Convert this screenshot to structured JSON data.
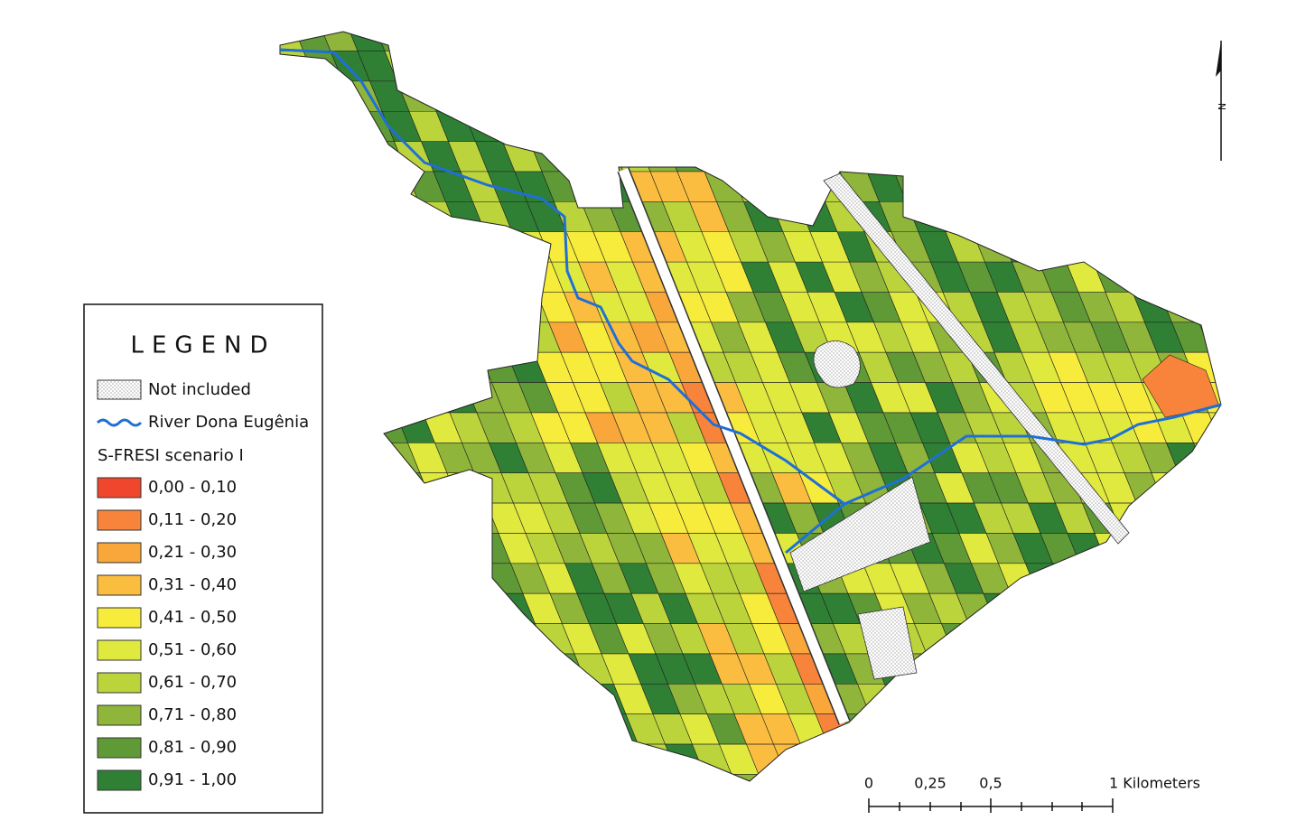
{
  "legend": {
    "title": "LEGEND",
    "items": [
      {
        "label": "Not included"
      },
      {
        "label": "River Dona Eugênia"
      }
    ],
    "subtitle": "S-FRESI scenario I",
    "classes": [
      {
        "label": "0,00 - 0,10",
        "color": "#f0462d"
      },
      {
        "label": "0,11 - 0,20",
        "color": "#f7843a"
      },
      {
        "label": "0,21 - 0,30",
        "color": "#f9a63a"
      },
      {
        "label": "0,31 - 0,40",
        "color": "#fbbd3f"
      },
      {
        "label": "0,41 - 0,50",
        "color": "#f7ec3c"
      },
      {
        "label": "0,51 - 0,60",
        "color": "#e0ea3e"
      },
      {
        "label": "0,61 - 0,70",
        "color": "#bcd43c"
      },
      {
        "label": "0,71 - 0,80",
        "color": "#8fb53a"
      },
      {
        "label": "0,81 - 0,90",
        "color": "#5f9a36"
      },
      {
        "label": "0,91 - 1,00",
        "color": "#2f8034"
      }
    ]
  },
  "scale_bar": {
    "labels": [
      "0",
      "0,25",
      "0,5",
      "1 Kilometers"
    ]
  },
  "north_arrow": {
    "label": "N"
  }
}
